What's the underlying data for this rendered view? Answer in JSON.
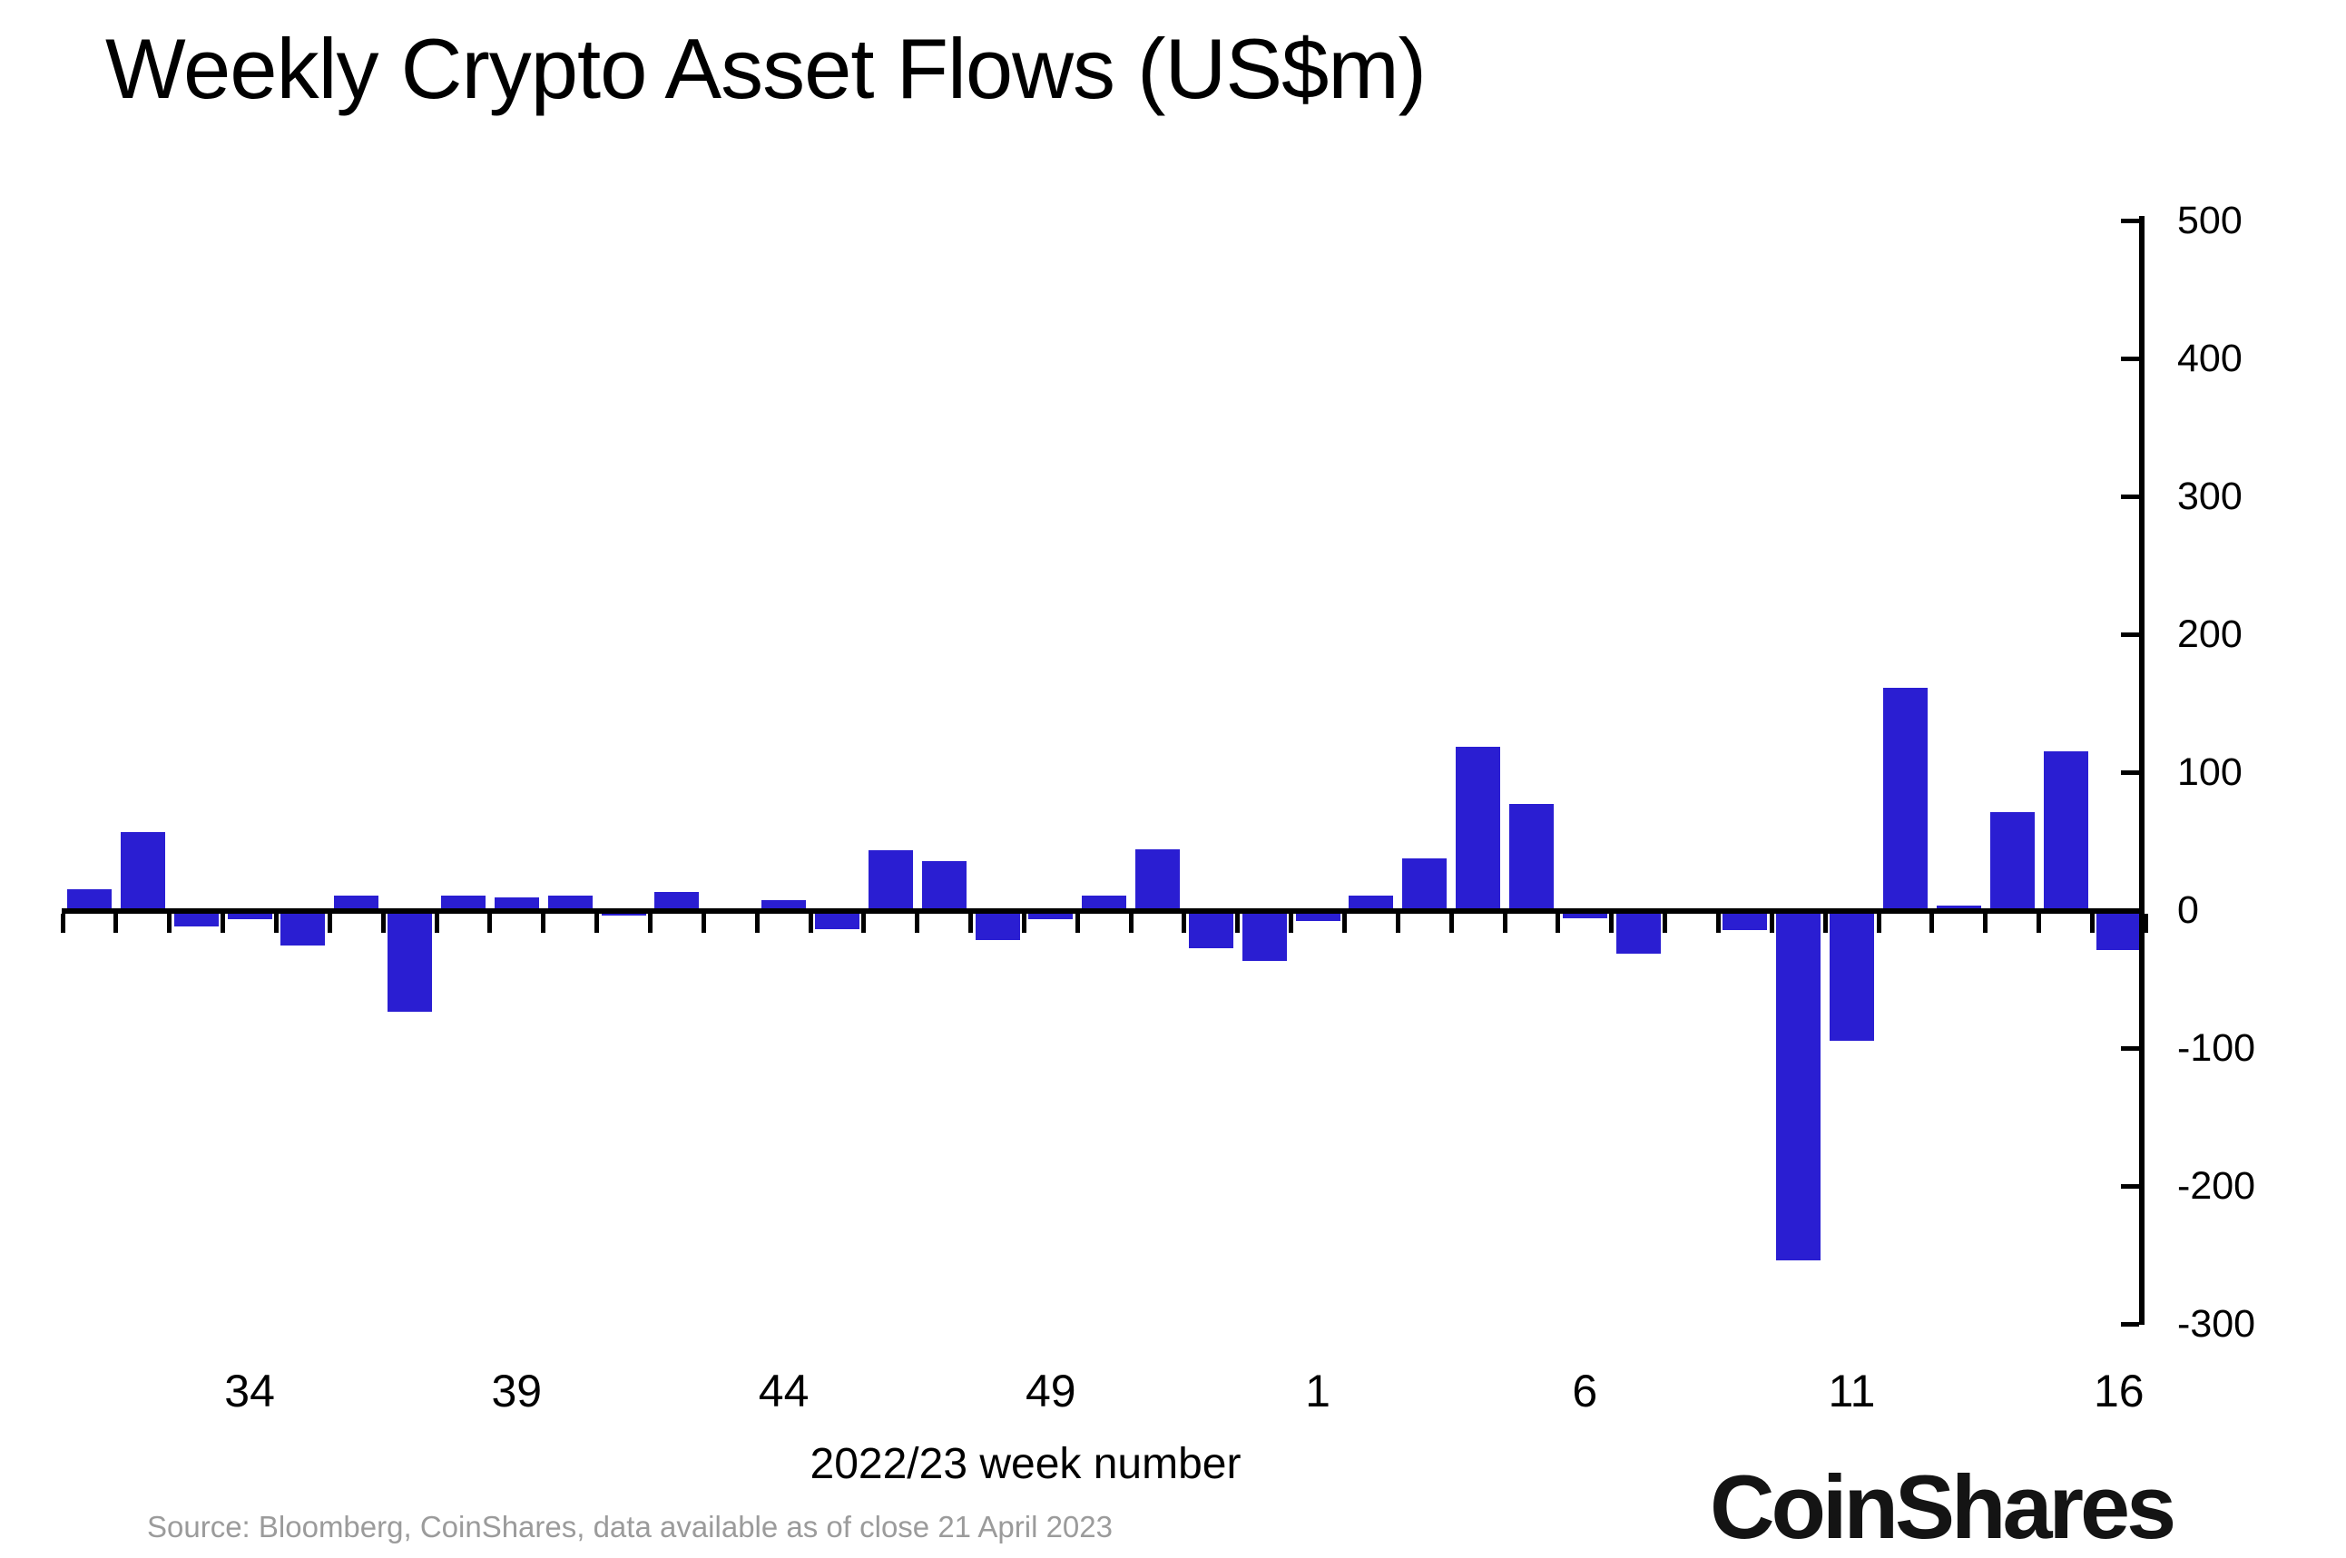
{
  "page": {
    "title": "Weekly Crypto Asset Flows (US$m)",
    "xlabel": "2022/23 week number",
    "source": "Source: Bloomberg, CoinShares, data available as of close 21 April 2023",
    "logo": "CoinShares"
  },
  "colors": {
    "background": "#ffffff",
    "bar": "#2a1ed2",
    "axis": "#000000",
    "tick_label": "#000000",
    "source_text": "#9b9b9b",
    "logo_text": "#141414"
  },
  "chart_data": {
    "type": "bar",
    "title": "Weekly Crypto Asset Flows (US$m)",
    "xlabel": "2022/23 week number",
    "ylabel": "",
    "series_name": "Weekly crypto asset flows (US$m)",
    "x": [
      "31",
      "32",
      "33",
      "34",
      "35",
      "36",
      "37",
      "38",
      "39",
      "40",
      "41",
      "42",
      "43",
      "44",
      "45",
      "46",
      "47",
      "48",
      "49",
      "50",
      "51",
      "52",
      "53",
      "1",
      "2",
      "3",
      "4",
      "5",
      "6",
      "7",
      "8",
      "9",
      "10",
      "11",
      "12",
      "13",
      "14",
      "15",
      "16"
    ],
    "values": [
      14,
      55,
      -13,
      -8,
      -27,
      9,
      -75,
      9,
      8,
      9,
      -5,
      12,
      -4,
      6,
      -15,
      42,
      34,
      -23,
      -8,
      9,
      43,
      -29,
      -38,
      -9,
      9,
      36,
      117,
      76,
      -7,
      -33,
      -2,
      -16,
      -255,
      -96,
      160,
      2,
      70,
      114,
      -30
    ],
    "ylim": [
      -300,
      500
    ],
    "yticks": [
      500,
      400,
      300,
      200,
      100,
      0,
      -100,
      -200,
      -300
    ],
    "xtick_labels_shown": [
      "34",
      "39",
      "44",
      "49",
      "1",
      "6",
      "11",
      "16"
    ],
    "grid": false,
    "legend": "none",
    "y_axis_position": "right",
    "bar_color": "#2a1ed2"
  }
}
